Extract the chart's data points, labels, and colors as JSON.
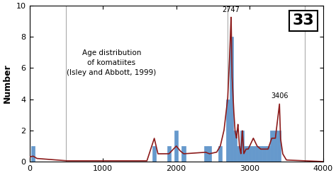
{
  "title_text": "Age distribution\nof komatiites\n(Isley and Abbott, 1999)",
  "ylabel": "Number",
  "xlabel": "",
  "slide_number": "33",
  "xlim": [
    0,
    4000
  ],
  "ylim": [
    0,
    10
  ],
  "yticks": [
    0,
    2,
    4,
    6,
    8,
    10
  ],
  "xticks": [
    0,
    1000,
    2000,
    3000,
    4000
  ],
  "bar_color": "#6699cc",
  "bar_edgecolor": "#6699cc",
  "curve_color": "#8b1a1a",
  "vline_positions": [
    500,
    2700,
    3750
  ],
  "vline_color": "#aaaaaa",
  "annotation_2747": "2747",
  "annotation_3406": "3406",
  "bar_data": [
    [
      50,
      1
    ],
    [
      1700,
      1
    ],
    [
      1900,
      1
    ],
    [
      2000,
      2
    ],
    [
      2100,
      1
    ],
    [
      2400,
      1
    ],
    [
      2450,
      1
    ],
    [
      2600,
      1
    ],
    [
      2700,
      4
    ],
    [
      2750,
      8
    ],
    [
      2800,
      2
    ],
    [
      2850,
      1
    ],
    [
      2900,
      2
    ],
    [
      2950,
      1
    ],
    [
      3000,
      1
    ],
    [
      3050,
      1
    ],
    [
      3100,
      1
    ],
    [
      3150,
      1
    ],
    [
      3200,
      1
    ],
    [
      3250,
      1
    ],
    [
      3300,
      2
    ],
    [
      3350,
      2
    ],
    [
      3400,
      2
    ]
  ],
  "curve_peaks": [
    [
      0,
      0.3
    ],
    [
      50,
      0.35
    ],
    [
      100,
      0.2
    ],
    [
      500,
      0.05
    ],
    [
      1600,
      0.05
    ],
    [
      1700,
      1.5
    ],
    [
      1750,
      0.5
    ],
    [
      1900,
      0.5
    ],
    [
      2000,
      1.0
    ],
    [
      2050,
      0.7
    ],
    [
      2100,
      0.5
    ],
    [
      2400,
      0.6
    ],
    [
      2450,
      0.5
    ],
    [
      2550,
      0.6
    ],
    [
      2600,
      1.0
    ],
    [
      2650,
      2.0
    ],
    [
      2700,
      4.0
    ],
    [
      2720,
      6.0
    ],
    [
      2747,
      9.3
    ],
    [
      2760,
      5.5
    ],
    [
      2780,
      3.5
    ],
    [
      2800,
      2.0
    ],
    [
      2820,
      1.5
    ],
    [
      2840,
      2.4
    ],
    [
      2860,
      1.0
    ],
    [
      2880,
      0.5
    ],
    [
      2900,
      2.0
    ],
    [
      2920,
      0.5
    ],
    [
      2950,
      0.8
    ],
    [
      2980,
      0.8
    ],
    [
      3000,
      1.0
    ],
    [
      3050,
      1.5
    ],
    [
      3100,
      1.0
    ],
    [
      3150,
      0.8
    ],
    [
      3200,
      0.8
    ],
    [
      3250,
      0.8
    ],
    [
      3300,
      1.5
    ],
    [
      3350,
      1.5
    ],
    [
      3406,
      3.7
    ],
    [
      3420,
      1.5
    ],
    [
      3450,
      0.5
    ],
    [
      3500,
      0.1
    ],
    [
      4000,
      0.0
    ]
  ]
}
